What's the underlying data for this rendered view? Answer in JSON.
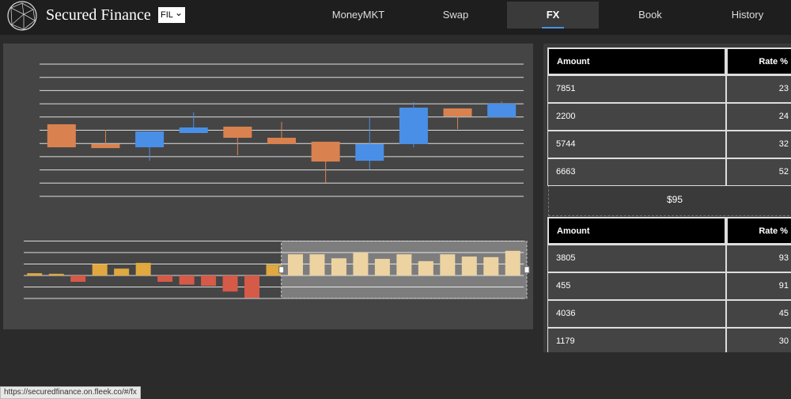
{
  "header": {
    "brand": "Secured Finance",
    "currency": "FIL",
    "nav": [
      "MoneyMKT",
      "Swap",
      "FX",
      "Book",
      "History"
    ]
  },
  "chart_data": [
    {
      "type": "candlestick",
      "ylim": [
        0,
        10
      ],
      "yticks": [
        0,
        1,
        2,
        3,
        4,
        5,
        6,
        7,
        8,
        9,
        10
      ],
      "grid": true,
      "up_color": "#4a8fe7",
      "down_color": "#d9824f",
      "open": [
        5.45,
        3.95,
        3.71,
        4.79,
        5.27,
        4.43,
        4.13,
        2.69,
        3.95,
        6.65,
        5.99
      ],
      "high": [
        5.45,
        5.03,
        4.91,
        6.35,
        5.27,
        5.63,
        4.13,
        5.93,
        7.13,
        6.65,
        7.19
      ],
      "low": [
        3.71,
        3.65,
        2.69,
        4.79,
        3.11,
        3.95,
        1.02,
        2.04,
        3.71,
        5.09,
        5.99
      ],
      "close": [
        3.71,
        3.65,
        4.91,
        5.21,
        4.43,
        3.95,
        2.63,
        3.95,
        6.71,
        6.05,
        7.01
      ]
    },
    {
      "type": "bar",
      "ylim": [
        -2,
        3
      ],
      "yticks": [
        -2,
        -1,
        0,
        1,
        2,
        3
      ],
      "grid": true,
      "positive_color": "#e0a83e",
      "negative_color": "#d55a48",
      "selected_color": "#e6c07a",
      "brush_range": [
        12,
        22
      ],
      "values": [
        0.2,
        0.15,
        -0.55,
        1.0,
        0.6,
        1.1,
        -0.55,
        -0.8,
        -0.9,
        -1.4,
        -1.95,
        0.95,
        1.85,
        1.85,
        1.5,
        2.0,
        1.45,
        1.85,
        1.25,
        1.85,
        1.65,
        1.6,
        2.15
      ]
    }
  ],
  "order_tables": [
    {
      "columns": [
        "Amount",
        "Rate %"
      ],
      "rows": [
        [
          7851,
          23
        ],
        [
          2200,
          24
        ],
        [
          5744,
          32
        ],
        [
          6663,
          52
        ]
      ]
    },
    {
      "columns": [
        "Amount",
        "Rate %"
      ],
      "rows": [
        [
          3805,
          93
        ],
        [
          455,
          91
        ],
        [
          4036,
          45
        ],
        [
          1179,
          30
        ]
      ]
    }
  ],
  "spread": "$95",
  "status_url": "https://securedfinance.on.fleek.co/#/fx"
}
